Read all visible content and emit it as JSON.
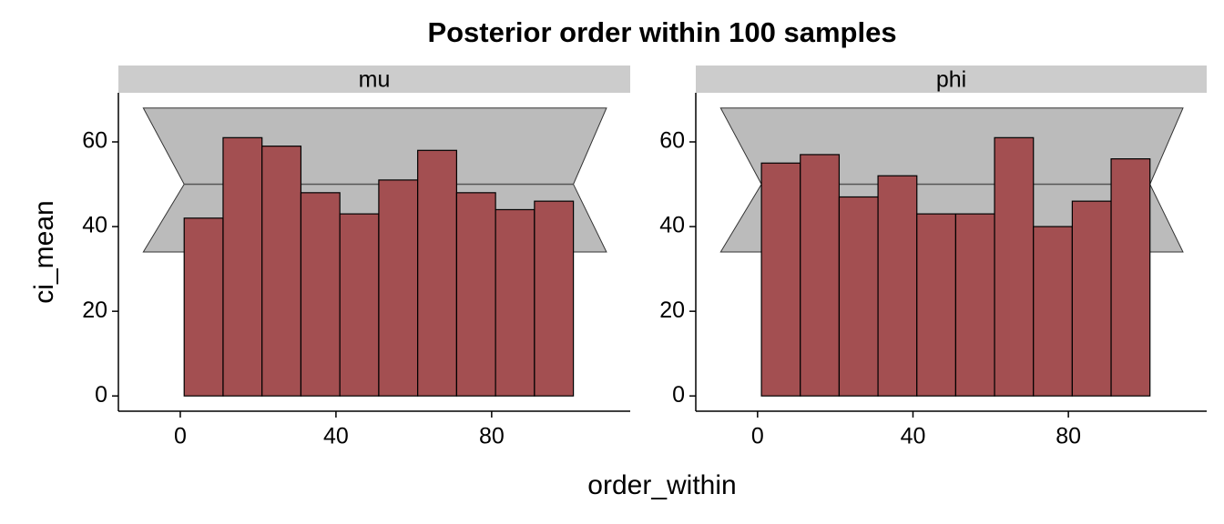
{
  "chart_data": {
    "type": "histogram",
    "title": "Posterior order within 100 samples",
    "x_label": "order_within",
    "y_label": "ci_mean",
    "facets": [
      {
        "strip": "mu",
        "type": "histogram",
        "color": "#a34f51",
        "bins": [
          1,
          11,
          21,
          31,
          41,
          51,
          61,
          71,
          81,
          91,
          101
        ],
        "values": [
          42,
          61,
          59,
          48,
          43,
          51,
          58,
          48,
          44,
          46
        ],
        "xlim": [
          -15.9,
          115.6
        ],
        "ylim": [
          -3.6,
          71.6
        ],
        "xticks": [
          0,
          40,
          80
        ],
        "yticks": [
          0,
          20,
          40,
          60
        ],
        "band": {
          "color": "#bbbbbb",
          "x": [
            -9.5,
            109.5,
            101,
            109.5,
            -9.5,
            1
          ],
          "y": [
            68,
            68,
            50,
            34,
            34,
            50
          ]
        }
      },
      {
        "strip": "phi",
        "type": "histogram",
        "color": "#a34f51",
        "bins": [
          1,
          11,
          21,
          31,
          41,
          51,
          61,
          71,
          81,
          91,
          101
        ],
        "values": [
          55,
          57,
          47,
          52,
          43,
          43,
          61,
          40,
          46,
          56
        ],
        "xlim": [
          -15.9,
          115.6
        ],
        "ylim": [
          -3.6,
          71.6
        ],
        "xticks": [
          0,
          40,
          80
        ],
        "yticks": [
          0,
          20,
          40,
          60
        ],
        "band": {
          "color": "#bbbbbb",
          "x": [
            -9.5,
            109.5,
            101,
            109.5,
            -9.5,
            1
          ],
          "y": [
            68,
            68,
            50,
            34,
            34,
            50
          ]
        }
      }
    ]
  }
}
